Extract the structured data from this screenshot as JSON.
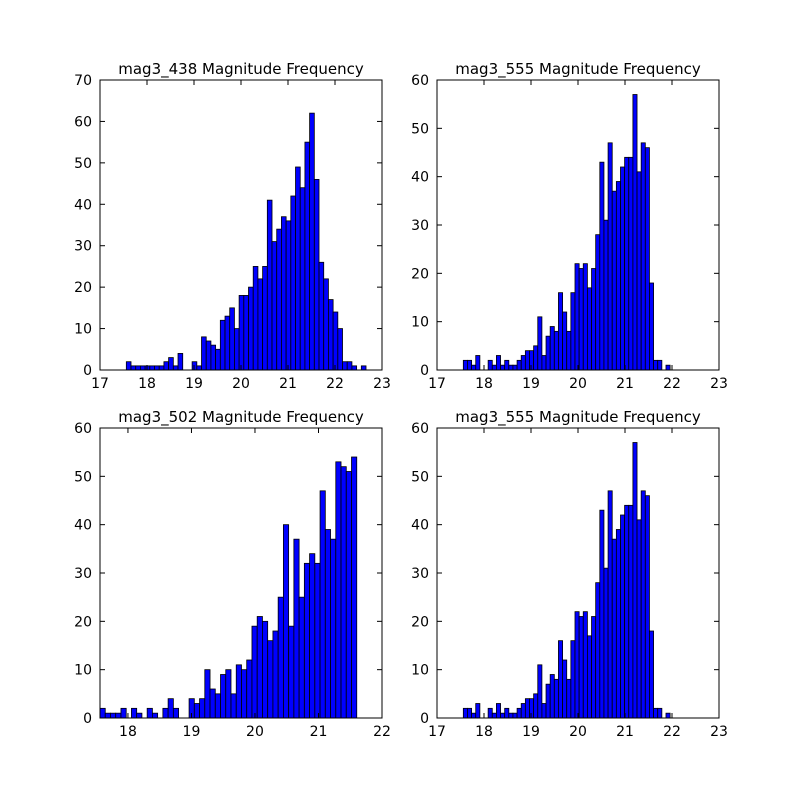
{
  "chart_data": [
    {
      "type": "bar",
      "title": "mag3_438 Magnitude Frequency",
      "xlabel": "",
      "ylabel": "",
      "xlim": [
        17,
        23
      ],
      "ylim": [
        0,
        70
      ],
      "xticks": [
        17,
        18,
        19,
        20,
        21,
        22,
        23
      ],
      "yticks": [
        0,
        10,
        20,
        30,
        40,
        50,
        60,
        70
      ],
      "bin_start": 17.56,
      "bin_width": 0.1,
      "values": [
        2,
        1,
        1,
        1,
        1,
        1,
        1,
        1,
        2,
        3,
        1,
        4,
        0,
        0,
        2,
        1,
        8,
        7,
        6,
        5,
        12,
        13,
        15,
        10,
        18,
        18,
        20,
        25,
        22,
        25,
        41,
        31,
        34,
        37,
        36,
        42,
        49,
        44,
        55,
        62,
        46,
        26,
        22,
        17,
        14,
        10,
        2,
        2,
        1,
        0,
        1
      ],
      "bar_color": "#0000ff",
      "grid": false
    },
    {
      "type": "bar",
      "title": "mag3_555 Magnitude Frequency",
      "xlabel": "",
      "ylabel": "",
      "xlim": [
        17,
        23
      ],
      "ylim": [
        0,
        60
      ],
      "xticks": [
        17,
        18,
        19,
        20,
        21,
        22,
        23
      ],
      "yticks": [
        0,
        10,
        20,
        30,
        40,
        50,
        60
      ],
      "bin_start": 17.56,
      "bin_width": 0.088,
      "values": [
        2,
        2,
        1,
        3,
        0,
        0,
        2,
        1,
        3,
        1,
        2,
        1,
        1,
        2,
        3,
        4,
        4,
        5,
        11,
        3,
        7,
        9,
        8,
        16,
        12,
        8,
        16,
        22,
        21,
        22,
        17,
        21,
        28,
        43,
        31,
        47,
        37,
        39,
        42,
        44,
        44,
        57,
        41,
        47,
        46,
        18,
        2,
        2,
        0,
        1
      ],
      "bar_color": "#0000ff",
      "grid": false
    },
    {
      "type": "bar",
      "title": "mag3_502 Magnitude Frequency",
      "xlabel": "",
      "ylabel": "",
      "xlim": [
        17.56,
        22
      ],
      "ylim": [
        0,
        60
      ],
      "xticks": [
        18,
        19,
        20,
        21,
        22
      ],
      "yticks": [
        0,
        10,
        20,
        30,
        40,
        50,
        60
      ],
      "bin_start": 17.56,
      "bin_width": 0.0825,
      "values": [
        2,
        1,
        1,
        1,
        2,
        0,
        2,
        1,
        0,
        2,
        1,
        0,
        2,
        4,
        2,
        0,
        0,
        4,
        3,
        4,
        10,
        6,
        5,
        9,
        10,
        5,
        11,
        10,
        12,
        19,
        21,
        20,
        16,
        18,
        25,
        40,
        19,
        37,
        25,
        32,
        34,
        32,
        47,
        39,
        37,
        53,
        52,
        51,
        54
      ],
      "bar_color": "#0000ff",
      "grid": false
    },
    {
      "type": "bar",
      "title": "mag3_555 Magnitude Frequency",
      "xlabel": "",
      "ylabel": "",
      "xlim": [
        17,
        23
      ],
      "ylim": [
        0,
        60
      ],
      "xticks": [
        17,
        18,
        19,
        20,
        21,
        22,
        23
      ],
      "yticks": [
        0,
        10,
        20,
        30,
        40,
        50,
        60
      ],
      "bin_start": 17.56,
      "bin_width": 0.088,
      "values": [
        2,
        2,
        1,
        3,
        0,
        0,
        2,
        1,
        3,
        1,
        2,
        1,
        1,
        2,
        3,
        4,
        4,
        5,
        11,
        3,
        7,
        9,
        8,
        16,
        12,
        8,
        16,
        22,
        21,
        22,
        17,
        21,
        28,
        43,
        31,
        47,
        37,
        39,
        42,
        44,
        44,
        57,
        41,
        47,
        46,
        18,
        2,
        2,
        0,
        1
      ],
      "bar_color": "#0000ff",
      "grid": false
    }
  ]
}
